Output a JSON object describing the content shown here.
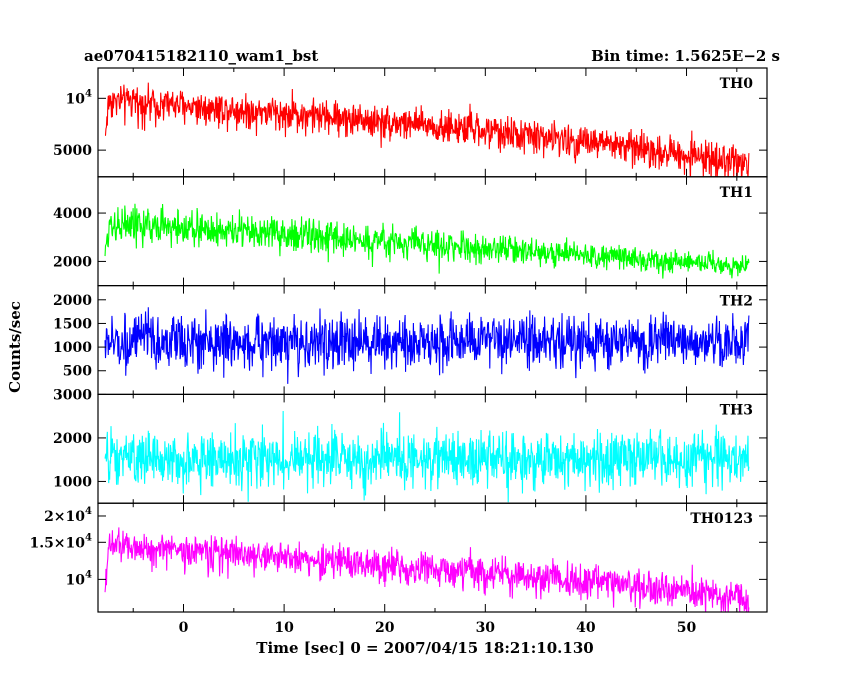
{
  "header": {
    "left_title": "ae070415182110_wam1_bst",
    "right_title": "Bin time: 1.5625E−2 s"
  },
  "chart_data": {
    "type": "line",
    "xlabel": "Time [sec] 0 = 2007/04/15 18:21:10.130",
    "ylabel": "Counts/sec",
    "xlim": [
      -8.5,
      58
    ],
    "xticks": [
      {
        "v": 0,
        "t": "0"
      },
      {
        "v": 10,
        "t": "10"
      },
      {
        "v": 20,
        "t": "20"
      },
      {
        "v": 30,
        "t": "30"
      },
      {
        "v": 40,
        "t": "40"
      },
      {
        "v": 50,
        "t": "50"
      }
    ],
    "panels": [
      {
        "name": "TH0",
        "color": "#ff0000",
        "scale": "log",
        "ylim": [
          3500,
          15000
        ],
        "t_start": -7.8,
        "t_end": 56.2,
        "model": {
          "start": 9800,
          "end": 4200,
          "spread": 0.2,
          "rise": 0.4
        },
        "yticks": [
          {
            "v": 5000,
            "t": "5000",
            "sup": ""
          },
          {
            "v": 10000,
            "t": "10",
            "sup": "4"
          }
        ]
      },
      {
        "name": "TH1",
        "color": "#00ff00",
        "scale": "linear",
        "ylim": [
          1000,
          5500
        ],
        "t_start": -7.8,
        "t_end": 56.2,
        "model": {
          "start": 3600,
          "end": 1800,
          "spread": 0.2,
          "rise": 0.4
        },
        "yticks": [
          {
            "v": 2000,
            "t": "2000",
            "sup": ""
          },
          {
            "v": 4000,
            "t": "4000",
            "sup": ""
          }
        ]
      },
      {
        "name": "TH2",
        "color": "#0000ff",
        "scale": "linear",
        "ylim": [
          0,
          2300
        ],
        "t_start": -7.8,
        "t_end": 56.2,
        "model": {
          "start": 1100,
          "end": 1100,
          "spread": 0.44,
          "rise": 0.0
        },
        "yticks": [
          {
            "v": 500,
            "t": "500",
            "sup": ""
          },
          {
            "v": 1000,
            "t": "1000",
            "sup": ""
          },
          {
            "v": 1500,
            "t": "1500",
            "sup": ""
          },
          {
            "v": 2000,
            "t": "2000",
            "sup": ""
          }
        ]
      },
      {
        "name": "TH3",
        "color": "#00ffff",
        "scale": "linear",
        "ylim": [
          500,
          3000
        ],
        "t_start": -7.8,
        "t_end": 56.2,
        "model": {
          "start": 1500,
          "end": 1500,
          "spread": 0.36,
          "rise": 0.0
        },
        "yticks": [
          {
            "v": 1000,
            "t": "1000",
            "sup": ""
          },
          {
            "v": 2000,
            "t": "2000",
            "sup": ""
          },
          {
            "v": 3000,
            "t": "3000",
            "sup": ""
          }
        ]
      },
      {
        "name": "TH0123",
        "color": "#ff00ff",
        "scale": "log",
        "ylim": [
          7000,
          23000
        ],
        "t_start": -7.8,
        "t_end": 56.2,
        "model": {
          "start": 14500,
          "end": 8200,
          "spread": 0.16,
          "rise": 0.4
        },
        "yticks": [
          {
            "v": 10000,
            "t": "10",
            "sup": "4"
          },
          {
            "v": 15000,
            "t": "1.5×10",
            "sup": "4"
          },
          {
            "v": 20000,
            "t": "2×10",
            "sup": "4"
          }
        ]
      }
    ]
  }
}
